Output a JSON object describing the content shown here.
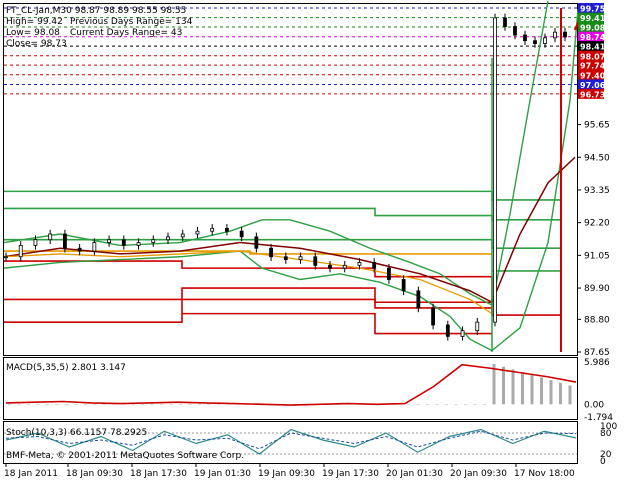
{
  "header": {
    "symbol_line": "FT_CL-Jan,M30  98.87 98.89 98.55 98.55",
    "high_line": "High= 99.42",
    "prev_range_line": "Previous Days Range= 134",
    "low_line": "Low= 98.08",
    "cur_range_line": "Current Days Range= 43",
    "close_line": "Close= 98.73"
  },
  "right_tags": [
    {
      "text": "99.75",
      "bg": "#1f1fd0",
      "fg": "#ffffff"
    },
    {
      "text": "99.41",
      "bg": "#1a8a1a",
      "fg": "#ffffff"
    },
    {
      "text": "99.08",
      "bg": "#1a8a1a",
      "fg": "#ffffff"
    },
    {
      "text": "98.74",
      "bg": "#e000e0",
      "fg": "#ffffff"
    },
    {
      "text": "98.41",
      "bg": "#000000",
      "fg": "#ffffff"
    },
    {
      "text": "98.07",
      "bg": "#cc0000",
      "fg": "#ffffff"
    },
    {
      "text": "97.74",
      "bg": "#cc0000",
      "fg": "#ffffff"
    },
    {
      "text": "97.40",
      "bg": "#cc0000",
      "fg": "#ffffff"
    },
    {
      "text": "97.06",
      "bg": "#1f1fd0",
      "fg": "#ffffff"
    },
    {
      "text": "96.73",
      "bg": "#cc0000",
      "fg": "#ffffff"
    }
  ],
  "price_axis_labels": [
    "95.65",
    "94.50",
    "93.35",
    "92.20",
    "91.05",
    "89.90",
    "88.80",
    "87.65"
  ],
  "macd": {
    "title": "MACD(5,35,5) 2.801 3.147",
    "axis_labels": [
      "5.986",
      "0.00",
      "-1.794"
    ]
  },
  "stoch": {
    "title": "Stoch(10,3,3) 66.1157 78.2925",
    "axis_labels": [
      "100",
      "80",
      "20",
      "0"
    ]
  },
  "copyright": "BMF-Meta, © 2001-2011 MetaQuotes Software Corp.",
  "time_axis_labels": [
    "18 Jan 2011",
    "18 Jan 09:30",
    "18 Jan 17:30",
    "19 Jan 01:30",
    "19 Jan 09:30",
    "19 Jan 17:30",
    "20 Jan 01:30",
    "20 Jan 09:30",
    "17 Nov 18:00"
  ],
  "colors": {
    "green": "#2ea043",
    "red": "#cc0000",
    "orange": "#e69a00",
    "maroon": "#800000",
    "blue_dash": "#0000cc"
  },
  "chart_data": [
    {
      "type": "candlestick",
      "title": "FT_CL-Jan,M30",
      "x_range": [
        "18 Jan 2011",
        "17 Nov 18:00"
      ],
      "ylim": [
        87.65,
        99.75
      ],
      "close_series_approx": [
        91.0,
        91.4,
        91.6,
        91.8,
        91.3,
        91.2,
        91.5,
        91.6,
        91.4,
        91.5,
        91.6,
        91.7,
        91.8,
        91.9,
        92.0,
        91.9,
        91.7,
        91.3,
        91.0,
        90.9,
        91.0,
        90.7,
        90.6,
        90.7,
        90.8,
        90.6,
        90.2,
        89.8,
        89.2,
        88.6,
        88.2,
        88.4,
        88.7,
        99.4,
        99.1,
        98.8,
        98.6,
        98.5,
        98.7,
        98.9,
        98.73
      ],
      "horizontal_levels": [
        99.75,
        99.41,
        99.08,
        98.74,
        98.41,
        98.07,
        97.74,
        97.4,
        97.06,
        96.73
      ]
    },
    {
      "type": "bar",
      "title": "MACD(5,35,5)",
      "values_note": "histogram near 0 until late, then rising to ~5.9",
      "signal_line": [
        0.2,
        0.3,
        0.4,
        0.2,
        0.1,
        0.2,
        0.3,
        0.2,
        0.1,
        0.0,
        -0.1,
        0.0,
        0.1,
        0.0,
        0.1,
        2.5,
        5.6,
        5.1,
        4.5,
        3.9,
        3.147
      ],
      "ylim": [
        -1.794,
        5.986
      ]
    },
    {
      "type": "line",
      "title": "Stoch(10,3,3)",
      "ylim": [
        0,
        100
      ],
      "main": [
        60,
        80,
        40,
        70,
        30,
        85,
        50,
        75,
        20,
        90,
        60,
        40,
        80,
        25,
        70,
        90,
        50,
        85,
        66.1157
      ],
      "signal": [
        65,
        70,
        50,
        60,
        45,
        75,
        60,
        65,
        35,
        80,
        65,
        50,
        70,
        40,
        65,
        85,
        60,
        80,
        78.2925
      ]
    }
  ]
}
